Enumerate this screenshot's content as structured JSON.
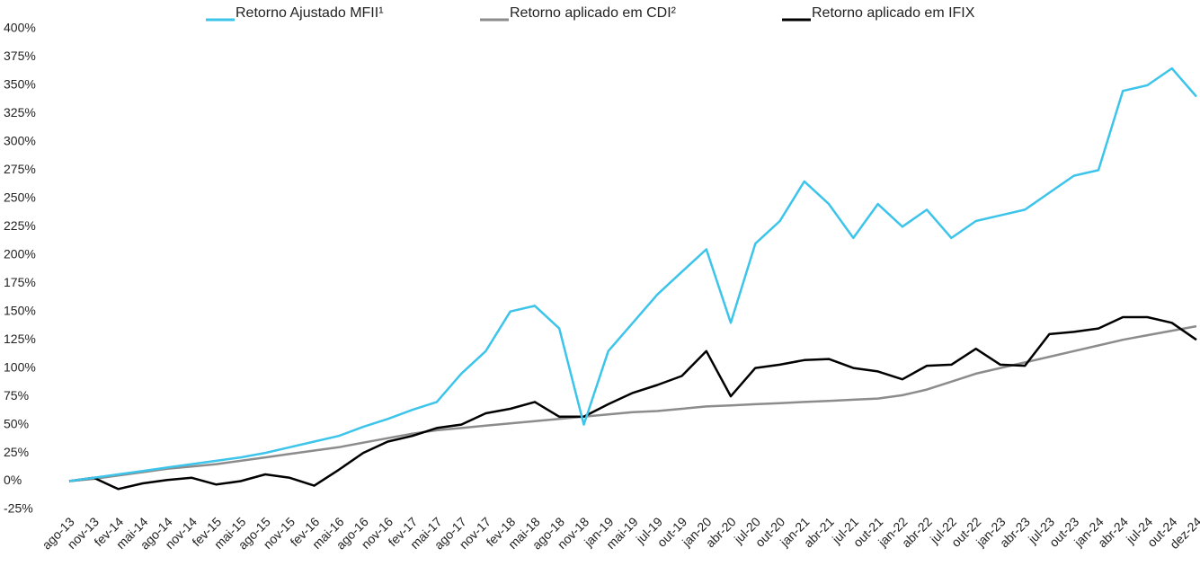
{
  "chart_data": {
    "type": "line",
    "categories": [
      "ago-13",
      "nov-13",
      "fev-14",
      "mai-14",
      "ago-14",
      "nov-14",
      "fev-15",
      "mai-15",
      "ago-15",
      "nov-15",
      "fev-16",
      "mai-16",
      "ago-16",
      "nov-16",
      "fev-17",
      "mai-17",
      "ago-17",
      "nov-17",
      "fev-18",
      "mai-18",
      "ago-18",
      "nov-18",
      "jan-19",
      "mai-19",
      "jul-19",
      "out-19",
      "jan-20",
      "abr-20",
      "jul-20",
      "out-20",
      "jan-21",
      "abr-21",
      "jul-21",
      "out-21",
      "jan-22",
      "abr-22",
      "jul-22",
      "out-22",
      "jan-23",
      "abr-23",
      "jul-23",
      "out-23",
      "jan-24",
      "abr-24",
      "jul-24",
      "out-24",
      "dez-24"
    ],
    "series": [
      {
        "name": "Retorno Ajustado MFII¹",
        "color": "#3cc4ea",
        "values": [
          0,
          3,
          6,
          9,
          12,
          15,
          18,
          21,
          25,
          30,
          35,
          40,
          48,
          55,
          63,
          70,
          95,
          115,
          150,
          155,
          135,
          50,
          115,
          140,
          165,
          185,
          205,
          140,
          210,
          230,
          265,
          245,
          215,
          245,
          225,
          240,
          215,
          230,
          235,
          240,
          255,
          270,
          275,
          345,
          350,
          365,
          340
        ]
      },
      {
        "name": "Retorno aplicado em CDI²",
        "color": "#8c8c8c",
        "values": [
          0,
          2,
          5,
          8,
          11,
          13,
          15,
          18,
          21,
          24,
          27,
          30,
          34,
          38,
          42,
          45,
          47,
          49,
          51,
          53,
          55,
          57,
          59,
          61,
          62,
          64,
          66,
          67,
          68,
          69,
          70,
          71,
          72,
          73,
          76,
          81,
          88,
          95,
          100,
          105,
          110,
          115,
          120,
          125,
          129,
          133,
          137
        ]
      },
      {
        "name": "Retorno aplicado em IFIX",
        "color": "#000000",
        "values": [
          0,
          3,
          -7,
          -2,
          1,
          3,
          -3,
          0,
          6,
          3,
          -4,
          10,
          25,
          35,
          40,
          47,
          50,
          60,
          64,
          70,
          57,
          57,
          68,
          78,
          85,
          93,
          115,
          75,
          100,
          103,
          107,
          108,
          100,
          97,
          90,
          102,
          103,
          117,
          103,
          102,
          130,
          132,
          135,
          145,
          145,
          140,
          125
        ]
      }
    ],
    "ylim": [
      -25,
      400
    ],
    "yticks": [
      {
        "value": -25,
        "label": "-25%"
      },
      {
        "value": 0,
        "label": "0%"
      },
      {
        "value": 25,
        "label": "25%"
      },
      {
        "value": 50,
        "label": "50%"
      },
      {
        "value": 75,
        "label": "75%"
      },
      {
        "value": 100,
        "label": "100%"
      },
      {
        "value": 125,
        "label": "125%"
      },
      {
        "value": 150,
        "label": "150%"
      },
      {
        "value": 175,
        "label": "175%"
      },
      {
        "value": 200,
        "label": "200%"
      },
      {
        "value": 225,
        "label": "225%"
      },
      {
        "value": 250,
        "label": "250%"
      },
      {
        "value": 275,
        "label": "275%"
      },
      {
        "value": 300,
        "label": "300%"
      },
      {
        "value": 325,
        "label": "325%"
      },
      {
        "value": 350,
        "label": "350%"
      },
      {
        "value": 375,
        "label": "375%"
      },
      {
        "value": 400,
        "label": "400%"
      }
    ],
    "legend": "top"
  }
}
